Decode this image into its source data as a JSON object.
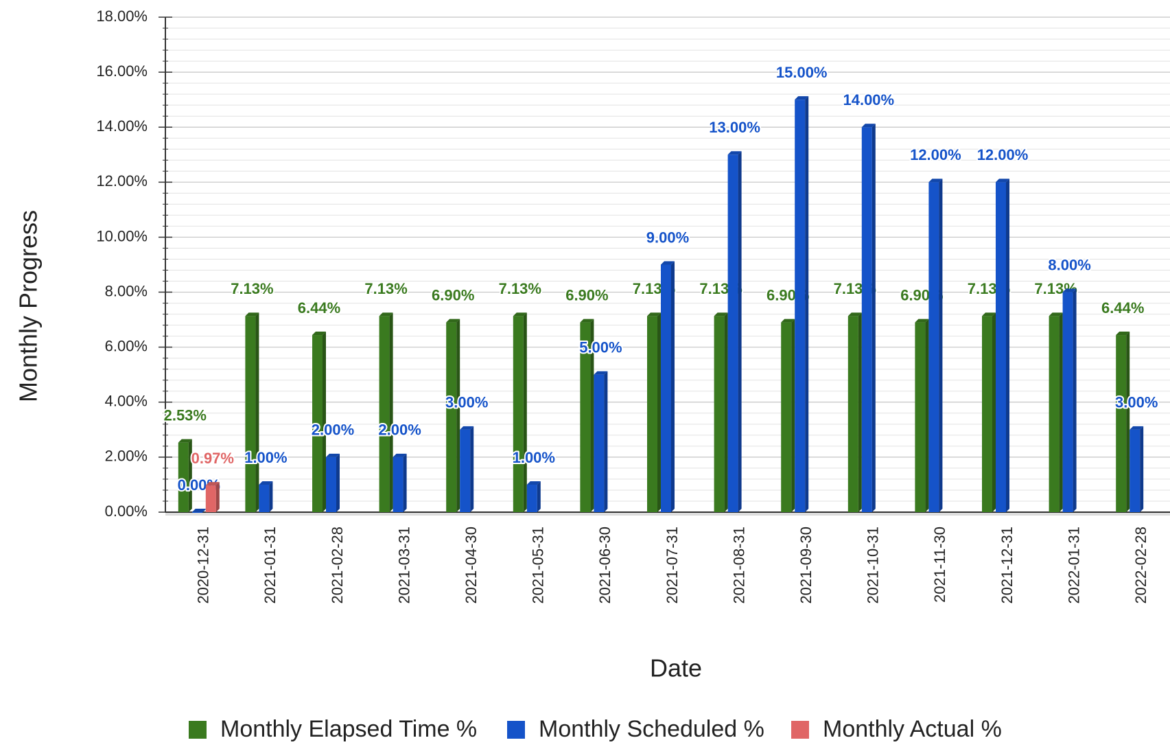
{
  "chart_data": {
    "type": "bar",
    "x_label": "Date",
    "y_label": "Monthly Progress",
    "categories": [
      "2020-12-31",
      "2021-01-31",
      "2021-02-28",
      "2021-03-31",
      "2021-04-30",
      "2021-05-31",
      "2021-06-30",
      "2021-07-31",
      "2021-08-31",
      "2021-09-30",
      "2021-10-31",
      "2021-11-30",
      "2021-12-31",
      "2022-01-31",
      "2022-02-28"
    ],
    "series": [
      {
        "name": "Monthly Elapsed Time %",
        "color": "#3a7a1f",
        "values": [
          2.53,
          7.13,
          6.44,
          7.13,
          6.9,
          7.13,
          6.9,
          7.13,
          7.13,
          6.9,
          7.13,
          6.9,
          7.13,
          7.13,
          6.44
        ],
        "value_labels": [
          "2.53%",
          "7.13%",
          "6.44%",
          "7.13%",
          "6.90%",
          "7.13%",
          "6.90%",
          "7.13%",
          "7.13%",
          "6.90%",
          "7.13%",
          "6.90%",
          "7.13%",
          "7.13%",
          "6.44%"
        ]
      },
      {
        "name": "Monthly Scheduled %",
        "color": "#1553c9",
        "values": [
          0,
          1,
          2,
          2,
          3,
          1,
          5,
          9,
          13,
          15,
          14,
          12,
          12,
          8,
          3
        ],
        "value_labels": [
          "0.00%",
          "1.00%",
          "2.00%",
          "2.00%",
          "3.00%",
          "1.00%",
          "5.00%",
          "9.00%",
          "13.00%",
          "15.00%",
          "14.00%",
          "12.00%",
          "12.00%",
          "8.00%",
          "3.00%"
        ]
      },
      {
        "name": "Monthly  Actual %",
        "color": "#e06666",
        "values": [
          0.97,
          null,
          null,
          null,
          null,
          null,
          null,
          null,
          null,
          null,
          null,
          null,
          null,
          null,
          null
        ],
        "value_labels": [
          "0.97%",
          null,
          null,
          null,
          null,
          null,
          null,
          null,
          null,
          null,
          null,
          null,
          null,
          null,
          null
        ]
      }
    ],
    "ylim": [
      0,
      18
    ],
    "yticks": [
      {
        "value": 0,
        "label": "0.00%"
      },
      {
        "value": 2,
        "label": "2.00%"
      },
      {
        "value": 4,
        "label": "4.00%"
      },
      {
        "value": 6,
        "label": "6.00%"
      },
      {
        "value": 8,
        "label": "8.00%"
      },
      {
        "value": 10,
        "label": "10.00%"
      },
      {
        "value": 12,
        "label": "12.00%"
      },
      {
        "value": 14,
        "label": "14.00%"
      },
      {
        "value": 16,
        "label": "16.00%"
      },
      {
        "value": 18,
        "label": "18.00%"
      }
    ],
    "grid": true,
    "legend": "bottom"
  }
}
